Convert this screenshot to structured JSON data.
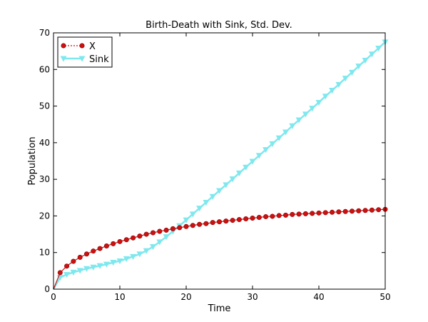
{
  "chart_data": {
    "type": "line",
    "title": "Birth-Death with Sink, Std. Dev.",
    "xlabel": "Time",
    "ylabel": "Population",
    "xlim": [
      0,
      50
    ],
    "ylim": [
      0,
      70
    ],
    "xticks": [
      0,
      10,
      20,
      30,
      40,
      50
    ],
    "yticks": [
      0,
      10,
      20,
      30,
      40,
      50,
      60,
      70
    ],
    "grid": false,
    "legend": "top-left",
    "x": [
      0,
      1,
      2,
      3,
      4,
      5,
      6,
      7,
      8,
      9,
      10,
      11,
      12,
      13,
      14,
      15,
      16,
      17,
      18,
      19,
      20,
      21,
      22,
      23,
      24,
      25,
      26,
      27,
      28,
      29,
      30,
      31,
      32,
      33,
      34,
      35,
      36,
      37,
      38,
      39,
      40,
      41,
      42,
      43,
      44,
      45,
      46,
      47,
      48,
      49,
      50
    ],
    "series": [
      {
        "name": "X",
        "color": "#cc1111",
        "marker": "circle",
        "values": [
          0,
          4.5,
          6.3,
          7.6,
          8.7,
          9.6,
          10.4,
          11.1,
          11.8,
          12.4,
          13.0,
          13.5,
          14.0,
          14.5,
          15.0,
          15.4,
          15.8,
          16.1,
          16.5,
          16.8,
          17.1,
          17.4,
          17.7,
          17.9,
          18.2,
          18.4,
          18.6,
          18.8,
          19.0,
          19.2,
          19.4,
          19.6,
          19.8,
          19.9,
          20.1,
          20.2,
          20.4,
          20.5,
          20.6,
          20.7,
          20.8,
          20.9,
          21.0,
          21.1,
          21.2,
          21.3,
          21.4,
          21.5,
          21.6,
          21.7,
          21.8
        ]
      },
      {
        "name": "Sink",
        "color": "#7fe8ee",
        "marker": "triangle-down",
        "values": [
          0,
          3.2,
          4.0,
          4.6,
          5.1,
          5.6,
          6.0,
          6.4,
          6.8,
          7.3,
          7.7,
          8.3,
          8.9,
          9.6,
          10.5,
          11.6,
          12.9,
          14.3,
          15.8,
          17.3,
          18.9,
          20.5,
          22.1,
          23.7,
          25.3,
          26.9,
          28.5,
          30.1,
          31.7,
          33.3,
          34.9,
          36.5,
          38.1,
          39.7,
          41.3,
          42.9,
          44.6,
          46.2,
          47.8,
          49.4,
          51.0,
          52.7,
          54.3,
          55.9,
          57.6,
          59.2,
          60.9,
          62.5,
          64.2,
          65.8,
          67.5
        ]
      }
    ]
  }
}
